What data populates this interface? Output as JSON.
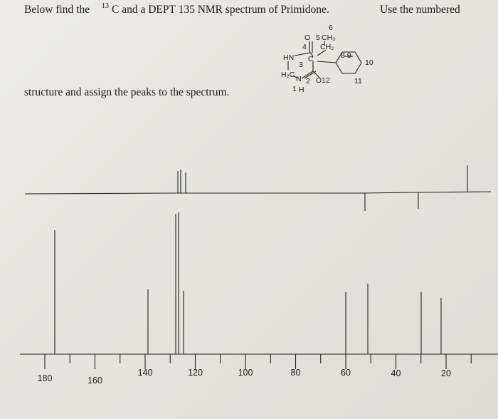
{
  "header": {
    "line1_a": "Below find the",
    "sup": "13",
    "line1_b": "C and a DEPT 135 NMR spectrum of Primidone.",
    "line1_c": "Use the numbered",
    "line2": "structure and assign the peaks to the spectrum."
  },
  "structure": {
    "labels": [
      "6",
      "O",
      "5",
      "CH₃",
      "4",
      "CH₂",
      "HN",
      "3",
      "C",
      "8 9",
      "10",
      "H₂C",
      "N",
      "2",
      "O12",
      "11",
      "1",
      "H"
    ]
  },
  "spectrum": {
    "axis_labels": [
      "180",
      "160",
      "140",
      "120",
      "100",
      "80",
      "60",
      "40",
      "20"
    ]
  }
}
